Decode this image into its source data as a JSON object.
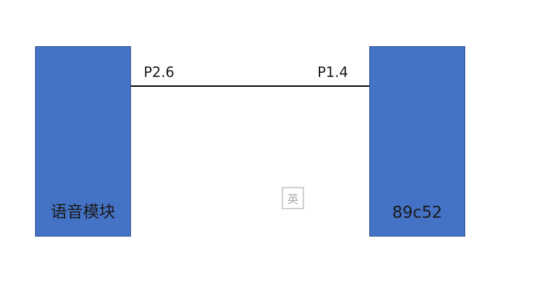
{
  "diagram": {
    "left_block": {
      "label": "语音模块"
    },
    "right_block": {
      "label": "89c52"
    },
    "connection": {
      "left_pin": "P2.6",
      "right_pin": "P1.4"
    }
  },
  "overlay": {
    "ime_indicator": "英"
  },
  "colors": {
    "block_fill": "#4472C4",
    "block_border": "#2F528F",
    "line": "#000000"
  }
}
